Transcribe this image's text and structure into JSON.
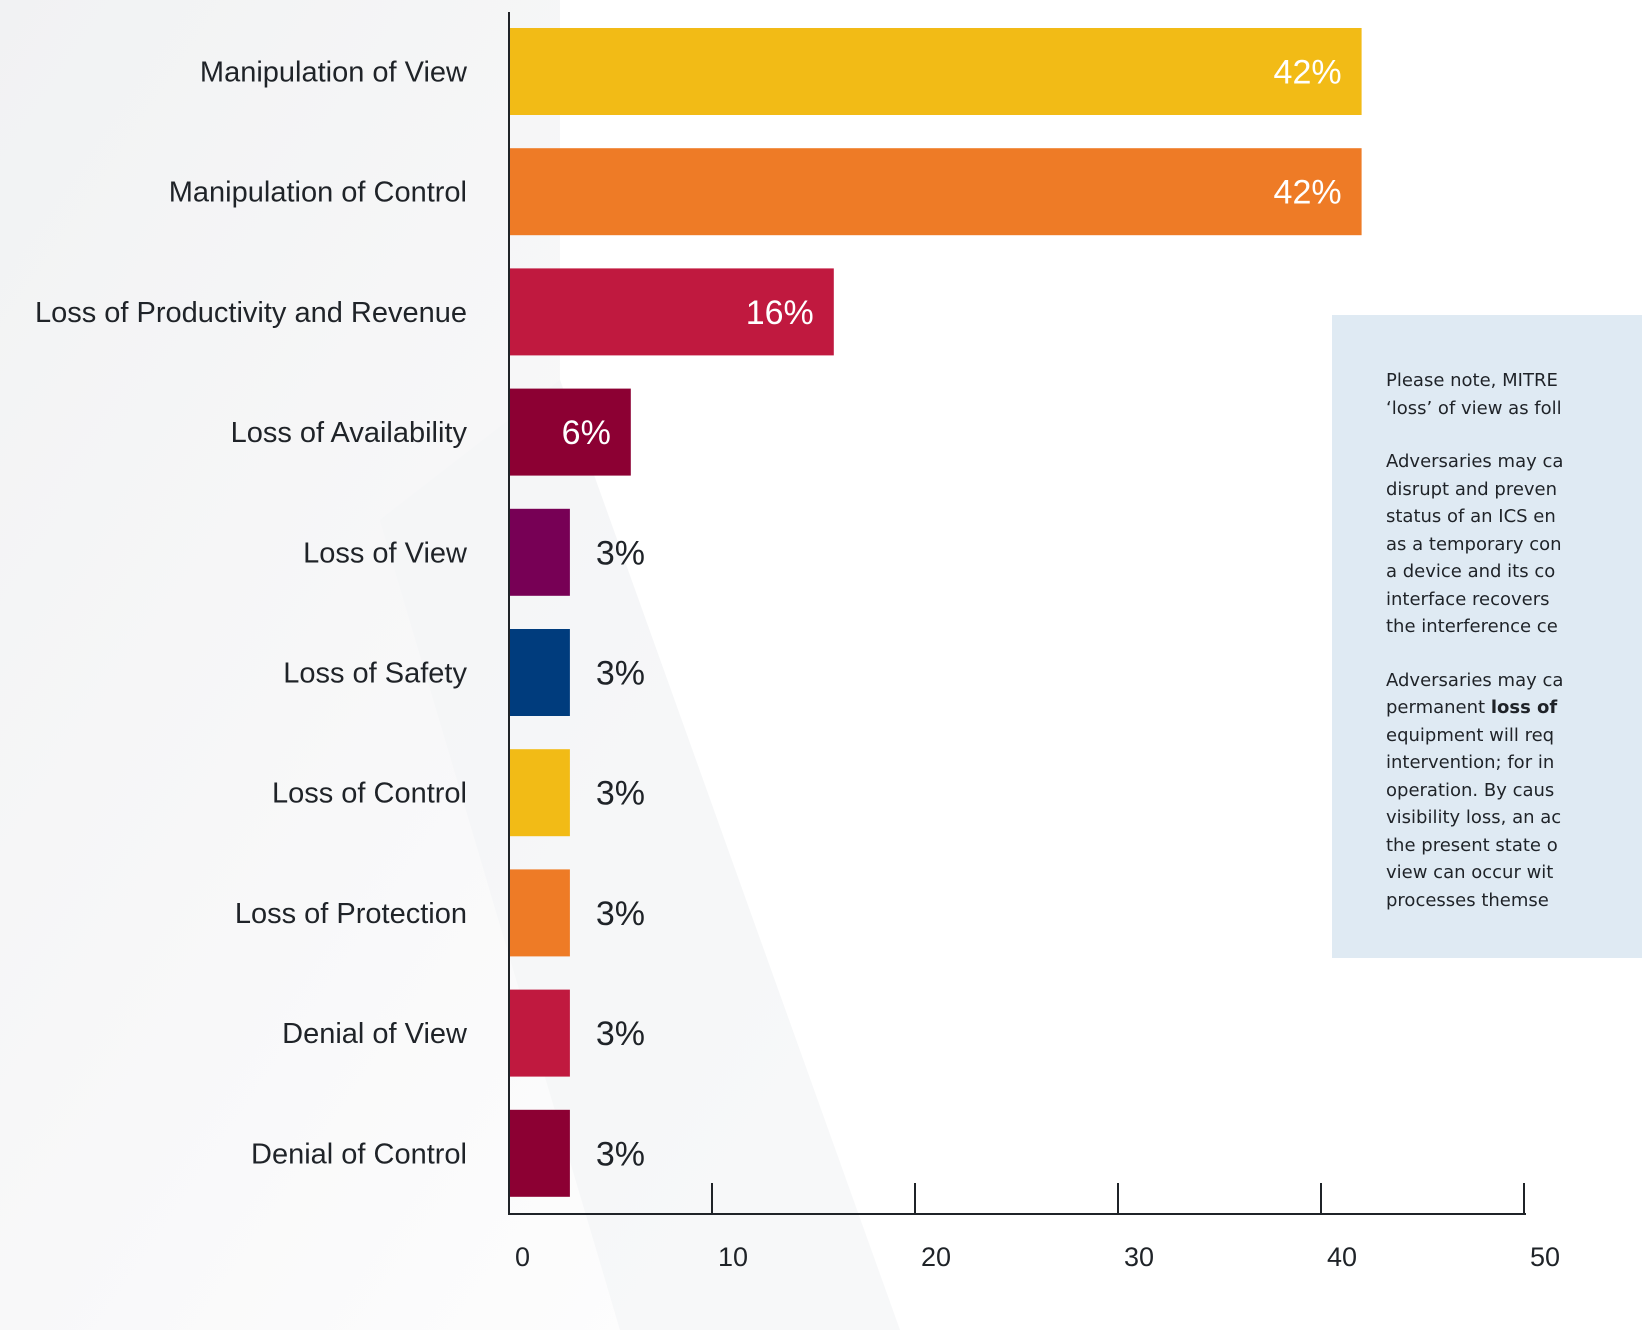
{
  "chart_data": {
    "type": "bar",
    "orientation": "horizontal",
    "categories": [
      "Manipulation of View",
      "Manipulation of Control",
      "Loss of Productivity and Revenue",
      "Loss of Availability",
      "Loss of View",
      "Loss of Safety",
      "Loss of Control",
      "Loss of Protection",
      "Denial of View",
      "Denial of Control"
    ],
    "values": [
      42,
      42,
      16,
      6,
      3,
      3,
      3,
      3,
      3,
      3
    ],
    "value_labels": [
      "42%",
      "42%",
      "16%",
      "6%",
      "3%",
      "3%",
      "3%",
      "3%",
      "3%",
      "3%"
    ],
    "colors": [
      "#f2bb16",
      "#ee7b26",
      "#c0193f",
      "#8c0033",
      "#770055",
      "#003c7d",
      "#f2bb16",
      "#ee7b26",
      "#c0193f",
      "#8c0033"
    ],
    "xlim": [
      0,
      50
    ],
    "xticks": [
      0,
      10,
      20,
      30,
      40,
      50
    ],
    "title": "",
    "xlabel": "",
    "ylabel": "",
    "grid": false,
    "legend": "none"
  },
  "note": {
    "paragraphs": [
      [
        [
          {
            "t": "Please note, MITRE"
          }
        ],
        [
          {
            "t": "‘loss’ of view as foll"
          }
        ]
      ],
      [
        [
          {
            "t": "Adversaries may ca"
          }
        ],
        [
          {
            "t": "disrupt and preven"
          }
        ],
        [
          {
            "t": "status of an ICS en"
          }
        ],
        [
          {
            "t": "as a temporary con"
          }
        ],
        [
          {
            "t": "a device and its co"
          }
        ],
        [
          {
            "t": "interface recovers"
          }
        ],
        [
          {
            "t": "the interference ce"
          }
        ]
      ],
      [
        [
          {
            "t": "Adversaries may ca"
          }
        ],
        [
          {
            "t": "permanent "
          },
          {
            "t": "loss of",
            "b": true
          }
        ],
        [
          {
            "t": "equipment will req"
          }
        ],
        [
          {
            "t": "intervention; for in"
          }
        ],
        [
          {
            "t": "operation. By caus"
          }
        ],
        [
          {
            "t": "visibility loss, an ac"
          }
        ],
        [
          {
            "t": "the present state o"
          }
        ],
        [
          {
            "t": "view can occur wit"
          }
        ],
        [
          {
            "t": "processes themse"
          }
        ]
      ]
    ]
  }
}
